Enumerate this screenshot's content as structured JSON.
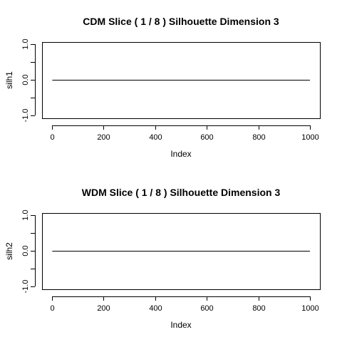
{
  "chart_data": [
    {
      "type": "line",
      "title": "CDM Slice ( 1 / 8 )  Silhouette Dimension 3",
      "xlabel": "Index",
      "ylabel": "silh1",
      "xlim": [
        0,
        1000
      ],
      "ylim": [
        -1.0,
        1.0
      ],
      "xticks": [
        0,
        200,
        400,
        600,
        800,
        1000
      ],
      "xtick_labels": [
        "0",
        "200",
        "400",
        "600",
        "800",
        "1000"
      ],
      "yticks": [
        -1.0,
        0.0,
        1.0
      ],
      "ytick_labels": [
        "-1.0",
        "0.0",
        "1.0"
      ],
      "y_minor_ticks": [
        -0.5,
        0.5
      ],
      "series": [
        {
          "x": [
            1,
            1000
          ],
          "y": [
            0,
            0
          ],
          "color": "#000000"
        }
      ],
      "grid": false
    },
    {
      "type": "line",
      "title": "WDM Slice ( 1 / 8 )  Silhouette Dimension 3",
      "xlabel": "Index",
      "ylabel": "silh2",
      "xlim": [
        0,
        1000
      ],
      "ylim": [
        -1.0,
        1.0
      ],
      "xticks": [
        0,
        200,
        400,
        600,
        800,
        1000
      ],
      "xtick_labels": [
        "0",
        "200",
        "400",
        "600",
        "800",
        "1000"
      ],
      "yticks": [
        -1.0,
        0.0,
        1.0
      ],
      "ytick_labels": [
        "-1.0",
        "0.0",
        "1.0"
      ],
      "y_minor_ticks": [
        -0.5,
        0.5
      ],
      "series": [
        {
          "x": [
            1,
            1000
          ],
          "y": [
            0,
            0
          ],
          "color": "#000000"
        }
      ],
      "grid": false
    }
  ]
}
